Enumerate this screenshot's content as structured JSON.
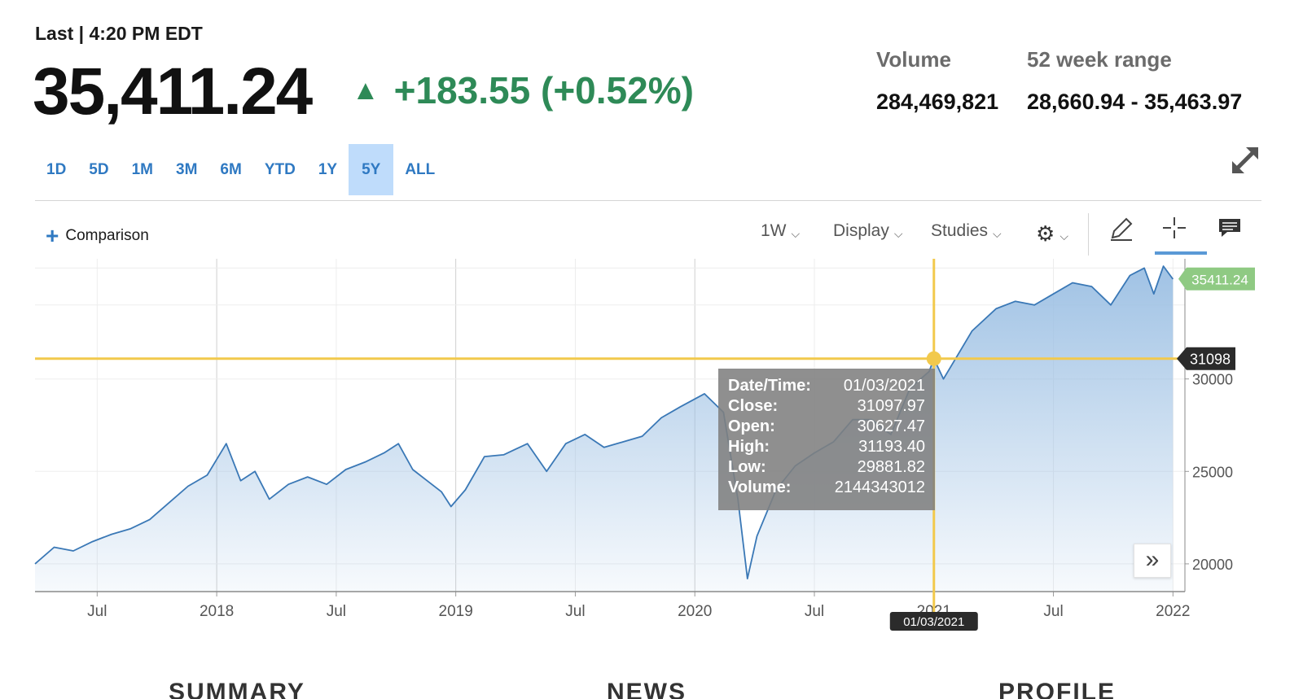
{
  "header": {
    "last_label": "Last | 4:20 PM EDT",
    "price": "35,411.24",
    "change": "+183.55 (+0.52%)",
    "change_color": "#2e8a57",
    "volume_label": "Volume",
    "volume_value": "284,469,821",
    "range_label": "52 week range",
    "range_value": "28,660.94 - 35,463.97"
  },
  "periods": [
    {
      "label": "1D"
    },
    {
      "label": "5D"
    },
    {
      "label": "1M"
    },
    {
      "label": "3M"
    },
    {
      "label": "6M"
    },
    {
      "label": "YTD"
    },
    {
      "label": "1Y"
    },
    {
      "label": "5Y",
      "active": true
    },
    {
      "label": "ALL"
    }
  ],
  "toolbar": {
    "comparison_label": "Comparison",
    "interval_label": "1W",
    "display_label": "Display",
    "studies_label": "Studies"
  },
  "icons": {
    "expand": "expand-icon",
    "settings": "gear-icon",
    "draw": "pencil-icon",
    "crosshair": "crosshair-icon",
    "comment": "comment-icon",
    "scroll": "double-chevron-right-icon"
  },
  "chart_data": {
    "type": "area",
    "x_tick_labels": [
      "Jul",
      "2018",
      "Jul",
      "2019",
      "Jul",
      "2020",
      "Jul",
      "2021",
      "Jul",
      "2022"
    ],
    "y_tick_labels": [
      "20000",
      "25000",
      "30000"
    ],
    "ylim": [
      18500,
      36500
    ],
    "last_value_label": "35411.24",
    "crosshair_value_label": "31098",
    "crosshair_date_label": "01/03/2021",
    "line_color": "#3a78b6",
    "crosshair_color": "#f2c94c",
    "series_points": [
      [
        2017.24,
        20000
      ],
      [
        2017.32,
        20900
      ],
      [
        2017.4,
        20700
      ],
      [
        2017.48,
        21200
      ],
      [
        2017.56,
        21600
      ],
      [
        2017.64,
        21900
      ],
      [
        2017.72,
        22400
      ],
      [
        2017.8,
        23300
      ],
      [
        2017.88,
        24200
      ],
      [
        2017.96,
        24800
      ],
      [
        2018.04,
        26500
      ],
      [
        2018.1,
        24500
      ],
      [
        2018.16,
        25000
      ],
      [
        2018.22,
        23500
      ],
      [
        2018.3,
        24300
      ],
      [
        2018.38,
        24700
      ],
      [
        2018.46,
        24300
      ],
      [
        2018.54,
        25100
      ],
      [
        2018.62,
        25500
      ],
      [
        2018.7,
        26000
      ],
      [
        2018.76,
        26500
      ],
      [
        2018.82,
        25100
      ],
      [
        2018.88,
        24500
      ],
      [
        2018.94,
        23900
      ],
      [
        2018.98,
        23100
      ],
      [
        2019.04,
        24000
      ],
      [
        2019.12,
        25800
      ],
      [
        2019.2,
        25900
      ],
      [
        2019.3,
        26500
      ],
      [
        2019.38,
        25000
      ],
      [
        2019.46,
        26500
      ],
      [
        2019.54,
        27000
      ],
      [
        2019.62,
        26300
      ],
      [
        2019.7,
        26600
      ],
      [
        2019.78,
        26900
      ],
      [
        2019.86,
        27900
      ],
      [
        2019.94,
        28500
      ],
      [
        2020.04,
        29200
      ],
      [
        2020.12,
        28200
      ],
      [
        2020.18,
        23500
      ],
      [
        2020.22,
        19200
      ],
      [
        2020.26,
        21500
      ],
      [
        2020.34,
        24000
      ],
      [
        2020.42,
        25300
      ],
      [
        2020.5,
        26000
      ],
      [
        2020.58,
        26600
      ],
      [
        2020.66,
        27800
      ],
      [
        2020.74,
        27800
      ],
      [
        2020.82,
        27000
      ],
      [
        2020.9,
        29500
      ],
      [
        2020.98,
        30400
      ],
      [
        2021.0,
        31098
      ],
      [
        2021.04,
        30000
      ],
      [
        2021.1,
        31300
      ],
      [
        2021.16,
        32600
      ],
      [
        2021.26,
        33800
      ],
      [
        2021.34,
        34200
      ],
      [
        2021.42,
        34000
      ],
      [
        2021.5,
        34600
      ],
      [
        2021.58,
        35200
      ],
      [
        2021.66,
        35000
      ],
      [
        2021.74,
        34000
      ],
      [
        2021.82,
        35600
      ],
      [
        2021.88,
        36000
      ],
      [
        2021.92,
        34600
      ],
      [
        2021.96,
        36100
      ],
      [
        2022.0,
        35400
      ]
    ],
    "tooltip": {
      "rows": [
        {
          "key": "Date/Time:",
          "value": "01/03/2021"
        },
        {
          "key": "Close:",
          "value": "31097.97"
        },
        {
          "key": "Open:",
          "value": "30627.47"
        },
        {
          "key": "High:",
          "value": "31193.40"
        },
        {
          "key": "Low:",
          "value": "29881.82"
        },
        {
          "key": "Volume:",
          "value": "2144343012"
        }
      ]
    }
  },
  "bottom_tabs": [
    "SUMMARY",
    "NEWS",
    "PROFILE"
  ]
}
